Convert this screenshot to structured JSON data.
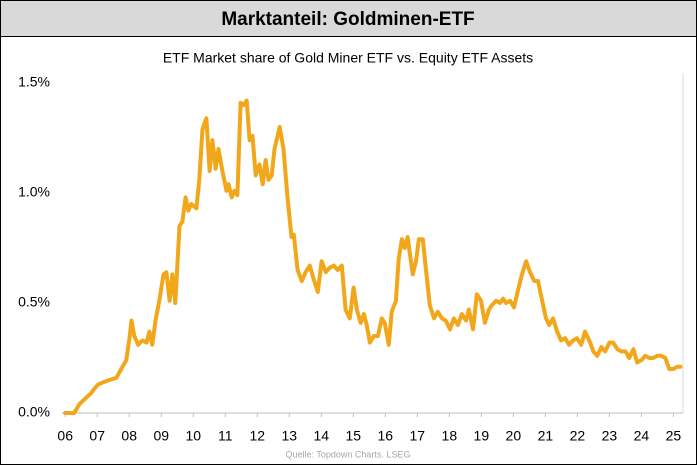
{
  "header": {
    "title": "Marktanteil: Goldminen-ETF"
  },
  "chart_data": {
    "type": "line",
    "title": "ETF Market share of Gold Miner ETF vs. Equity ETF Assets",
    "source": "Quelle: Topdown Charts. LSEG",
    "color": "#f2a71b",
    "x": [
      2006.0,
      2006.28,
      2006.44,
      2006.66,
      2006.81,
      2006.91,
      2007.03,
      2007.19,
      2007.38,
      2007.6,
      2007.75,
      2007.91,
      2008.0,
      2008.07,
      2008.16,
      2008.28,
      2008.41,
      2008.54,
      2008.63,
      2008.72,
      2008.82,
      2008.94,
      2009.07,
      2009.16,
      2009.26,
      2009.35,
      2009.44,
      2009.57,
      2009.66,
      2009.76,
      2009.85,
      2009.94,
      2010.1,
      2010.19,
      2010.29,
      2010.41,
      2010.51,
      2010.6,
      2010.7,
      2010.79,
      2010.91,
      2011.04,
      2011.1,
      2011.2,
      2011.29,
      2011.38,
      2011.48,
      2011.57,
      2011.67,
      2011.76,
      2011.85,
      2011.95,
      2012.07,
      2012.17,
      2012.26,
      2012.35,
      2012.45,
      2012.54,
      2012.7,
      2012.82,
      2012.95,
      2013.07,
      2013.14,
      2013.26,
      2013.39,
      2013.51,
      2013.64,
      2013.76,
      2013.89,
      2014.01,
      2014.14,
      2014.26,
      2014.39,
      2014.51,
      2014.64,
      2014.76,
      2014.89,
      2015.01,
      2015.11,
      2015.23,
      2015.33,
      2015.42,
      2015.52,
      2015.64,
      2015.77,
      2015.89,
      2015.98,
      2016.11,
      2016.2,
      2016.33,
      2016.42,
      2016.52,
      2016.61,
      2016.7,
      2016.77,
      2016.86,
      2016.96,
      2017.05,
      2017.17,
      2017.27,
      2017.39,
      2017.52,
      2017.64,
      2017.77,
      2017.89,
      2018.02,
      2018.14,
      2018.27,
      2018.39,
      2018.52,
      2018.61,
      2018.74,
      2018.86,
      2018.99,
      2019.11,
      2019.24,
      2019.33,
      2019.46,
      2019.58,
      2019.68,
      2019.77,
      2019.9,
      2020.02,
      2020.15,
      2020.27,
      2020.4,
      2020.52,
      2020.65,
      2020.77,
      2020.9,
      2021.02,
      2021.12,
      2021.24,
      2021.37,
      2021.49,
      2021.62,
      2021.74,
      2021.87,
      2021.99,
      2022.12,
      2022.24,
      2022.37,
      2022.5,
      2022.62,
      2022.75,
      2022.87,
      2023.0,
      2023.12,
      2023.25,
      2023.37,
      2023.5,
      2023.62,
      2023.75,
      2023.87,
      2024.0,
      2024.12,
      2024.25,
      2024.37,
      2024.5,
      2024.62,
      2024.75,
      2024.87,
      2025.0,
      2025.12,
      2025.22
    ],
    "values": [
      0.0,
      0.0,
      0.04,
      0.07,
      0.09,
      0.11,
      0.13,
      0.14,
      0.15,
      0.16,
      0.2,
      0.24,
      0.33,
      0.42,
      0.35,
      0.31,
      0.33,
      0.32,
      0.37,
      0.31,
      0.42,
      0.51,
      0.63,
      0.64,
      0.51,
      0.63,
      0.5,
      0.85,
      0.87,
      0.98,
      0.92,
      0.95,
      0.93,
      1.06,
      1.29,
      1.34,
      1.1,
      1.24,
      1.11,
      1.2,
      1.1,
      1.01,
      1.04,
      0.98,
      1.01,
      0.99,
      1.41,
      1.4,
      1.42,
      1.24,
      1.26,
      1.08,
      1.13,
      1.04,
      1.15,
      1.06,
      1.08,
      1.2,
      1.3,
      1.2,
      0.97,
      0.8,
      0.81,
      0.65,
      0.6,
      0.64,
      0.67,
      0.61,
      0.55,
      0.69,
      0.64,
      0.66,
      0.67,
      0.65,
      0.67,
      0.47,
      0.43,
      0.57,
      0.47,
      0.41,
      0.45,
      0.4,
      0.32,
      0.35,
      0.35,
      0.43,
      0.41,
      0.31,
      0.46,
      0.51,
      0.7,
      0.79,
      0.75,
      0.8,
      0.72,
      0.63,
      0.69,
      0.79,
      0.79,
      0.65,
      0.49,
      0.43,
      0.46,
      0.43,
      0.42,
      0.38,
      0.43,
      0.4,
      0.45,
      0.42,
      0.47,
      0.38,
      0.54,
      0.51,
      0.41,
      0.47,
      0.49,
      0.51,
      0.5,
      0.52,
      0.5,
      0.51,
      0.48,
      0.56,
      0.63,
      0.69,
      0.64,
      0.6,
      0.6,
      0.51,
      0.43,
      0.4,
      0.43,
      0.37,
      0.33,
      0.34,
      0.31,
      0.33,
      0.34,
      0.31,
      0.37,
      0.33,
      0.28,
      0.26,
      0.3,
      0.28,
      0.32,
      0.32,
      0.29,
      0.28,
      0.28,
      0.25,
      0.29,
      0.23,
      0.24,
      0.26,
      0.25,
      0.25,
      0.26,
      0.26,
      0.25,
      0.2,
      0.2,
      0.21,
      0.21
    ],
    "xlim": [
      2005.9,
      2025.3
    ],
    "xticks": [
      {
        "value": 2006,
        "label": "06"
      },
      {
        "value": 2007,
        "label": "07"
      },
      {
        "value": 2008,
        "label": "08"
      },
      {
        "value": 2009,
        "label": "09"
      },
      {
        "value": 2010,
        "label": "10"
      },
      {
        "value": 2011,
        "label": "11"
      },
      {
        "value": 2012,
        "label": "12"
      },
      {
        "value": 2013,
        "label": "13"
      },
      {
        "value": 2014,
        "label": "14"
      },
      {
        "value": 2015,
        "label": "15"
      },
      {
        "value": 2016,
        "label": "16"
      },
      {
        "value": 2017,
        "label": "17"
      },
      {
        "value": 2018,
        "label": "18"
      },
      {
        "value": 2019,
        "label": "19"
      },
      {
        "value": 2020,
        "label": "20"
      },
      {
        "value": 2021,
        "label": "21"
      },
      {
        "value": 2022,
        "label": "22"
      },
      {
        "value": 2023,
        "label": "23"
      },
      {
        "value": 2024,
        "label": "24"
      },
      {
        "value": 2025,
        "label": "25"
      }
    ],
    "ylim": [
      0,
      1.5
    ],
    "yticks": [
      {
        "value": 0,
        "label": "0.0%"
      },
      {
        "value": 0.5,
        "label": "0.5%"
      },
      {
        "value": 1.0,
        "label": "1.0%"
      },
      {
        "value": 1.5,
        "label": "1.5%"
      }
    ],
    "grid": false
  }
}
